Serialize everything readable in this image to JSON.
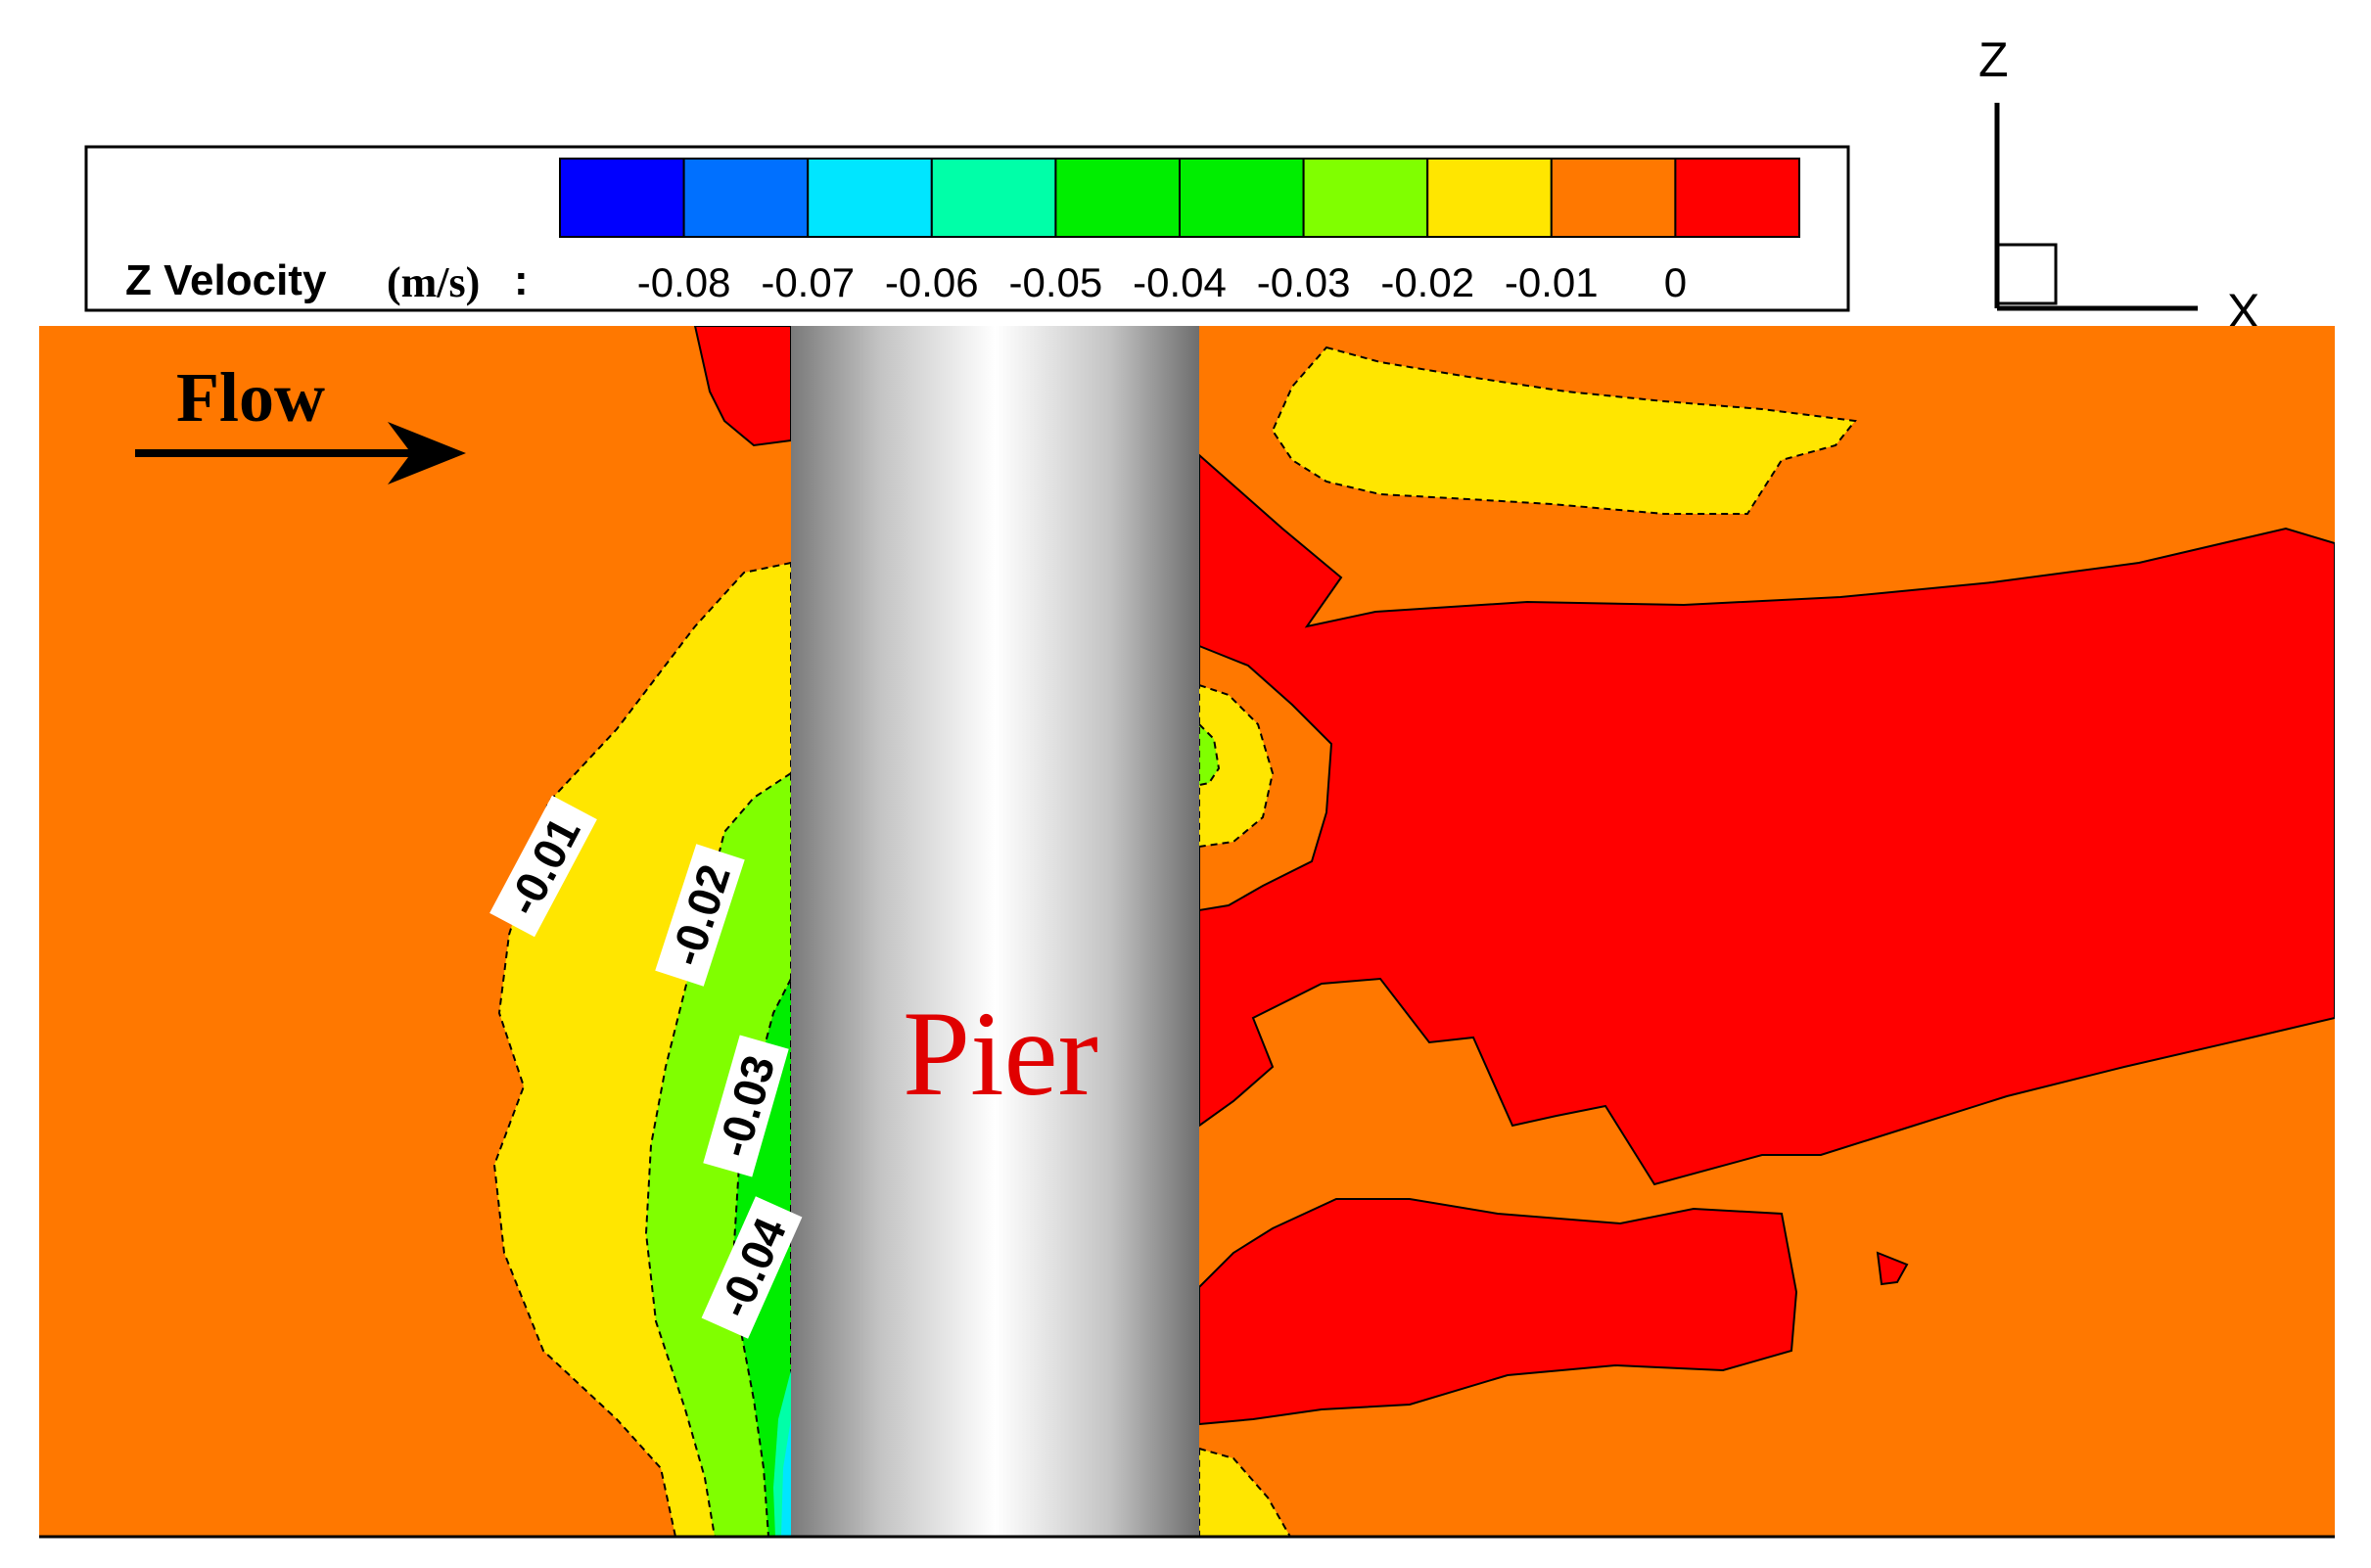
{
  "chart_data": {
    "type": "contour",
    "variable": "Z Velocity",
    "legend": {
      "title": "Z Velocity",
      "unit": "(m/s)",
      "separator": ":",
      "levels": [
        {
          "label": "-0.08",
          "value": -0.08
        },
        {
          "label": "-0.07",
          "value": -0.07
        },
        {
          "label": "-0.06",
          "value": -0.06
        },
        {
          "label": "-0.05",
          "value": -0.05
        },
        {
          "label": "-0.04",
          "value": -0.04
        },
        {
          "label": "-0.03",
          "value": -0.03
        },
        {
          "label": "-0.02",
          "value": -0.02
        },
        {
          "label": "-0.01",
          "value": -0.01
        },
        {
          "label": "0",
          "value": 0
        }
      ],
      "colors": [
        "#0000ff",
        "#0070ff",
        "#00e6ff",
        "#00ffa8",
        "#00ee00",
        "#00ee00",
        "#80ff00",
        "#ffe600",
        "#ff7800",
        "#ff0000"
      ]
    },
    "contour_labels": [
      {
        "label": "-0.01",
        "value": -0.01
      },
      {
        "label": "-0.02",
        "value": -0.02
      },
      {
        "label": "-0.03",
        "value": -0.03
      },
      {
        "label": "-0.04",
        "value": -0.04
      }
    ],
    "annotations": {
      "flow": "Flow",
      "pier": "Pier"
    },
    "axes": {
      "z": "Z",
      "x": "X"
    }
  }
}
